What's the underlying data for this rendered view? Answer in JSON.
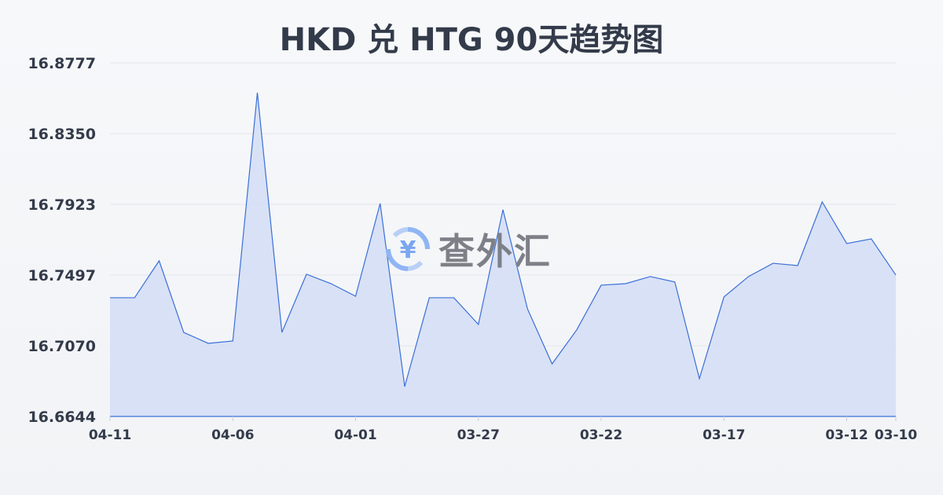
{
  "chart_data": {
    "type": "area",
    "title": "HKD 兑 HTG 90天趋势图",
    "xlabel": "",
    "ylabel": "",
    "x": [
      "04-11",
      "04-10",
      "04-09",
      "04-08",
      "04-07",
      "04-06",
      "04-05",
      "04-04",
      "04-03",
      "04-02",
      "04-01",
      "03-31",
      "03-30",
      "03-29",
      "03-28",
      "03-27",
      "03-26",
      "03-25",
      "03-24",
      "03-23",
      "03-22",
      "03-21",
      "03-20",
      "03-19",
      "03-18",
      "03-17",
      "03-16",
      "03-15",
      "03-14",
      "03-13",
      "03-12",
      "03-11",
      "03-10"
    ],
    "values": [
      16.736,
      16.736,
      16.7583,
      16.7151,
      16.7085,
      16.7099,
      16.8597,
      16.7151,
      16.7502,
      16.7445,
      16.7369,
      16.7929,
      16.6824,
      16.736,
      16.736,
      16.7199,
      16.7891,
      16.7293,
      16.6961,
      16.7165,
      16.7436,
      16.7445,
      16.7488,
      16.7455,
      16.6872,
      16.7365,
      16.7488,
      16.7568,
      16.7554,
      16.7938,
      16.7687,
      16.7715,
      16.7497
    ],
    "ylim": [
      16.6644,
      16.8777
    ],
    "yticks": [
      "16.6644",
      "16.7070",
      "16.7497",
      "16.7923",
      "16.8350",
      "16.8777"
    ],
    "xticks": [
      "04-11",
      "04-06",
      "04-01",
      "03-27",
      "03-22",
      "03-17",
      "03-12",
      "03-10"
    ],
    "grid": true,
    "line_color": "#3a6fd8",
    "fill_color": "#d5dff5"
  },
  "watermark": {
    "text": "查外汇",
    "icon": "yen-exchange-icon",
    "color": "#7aa7f0"
  }
}
